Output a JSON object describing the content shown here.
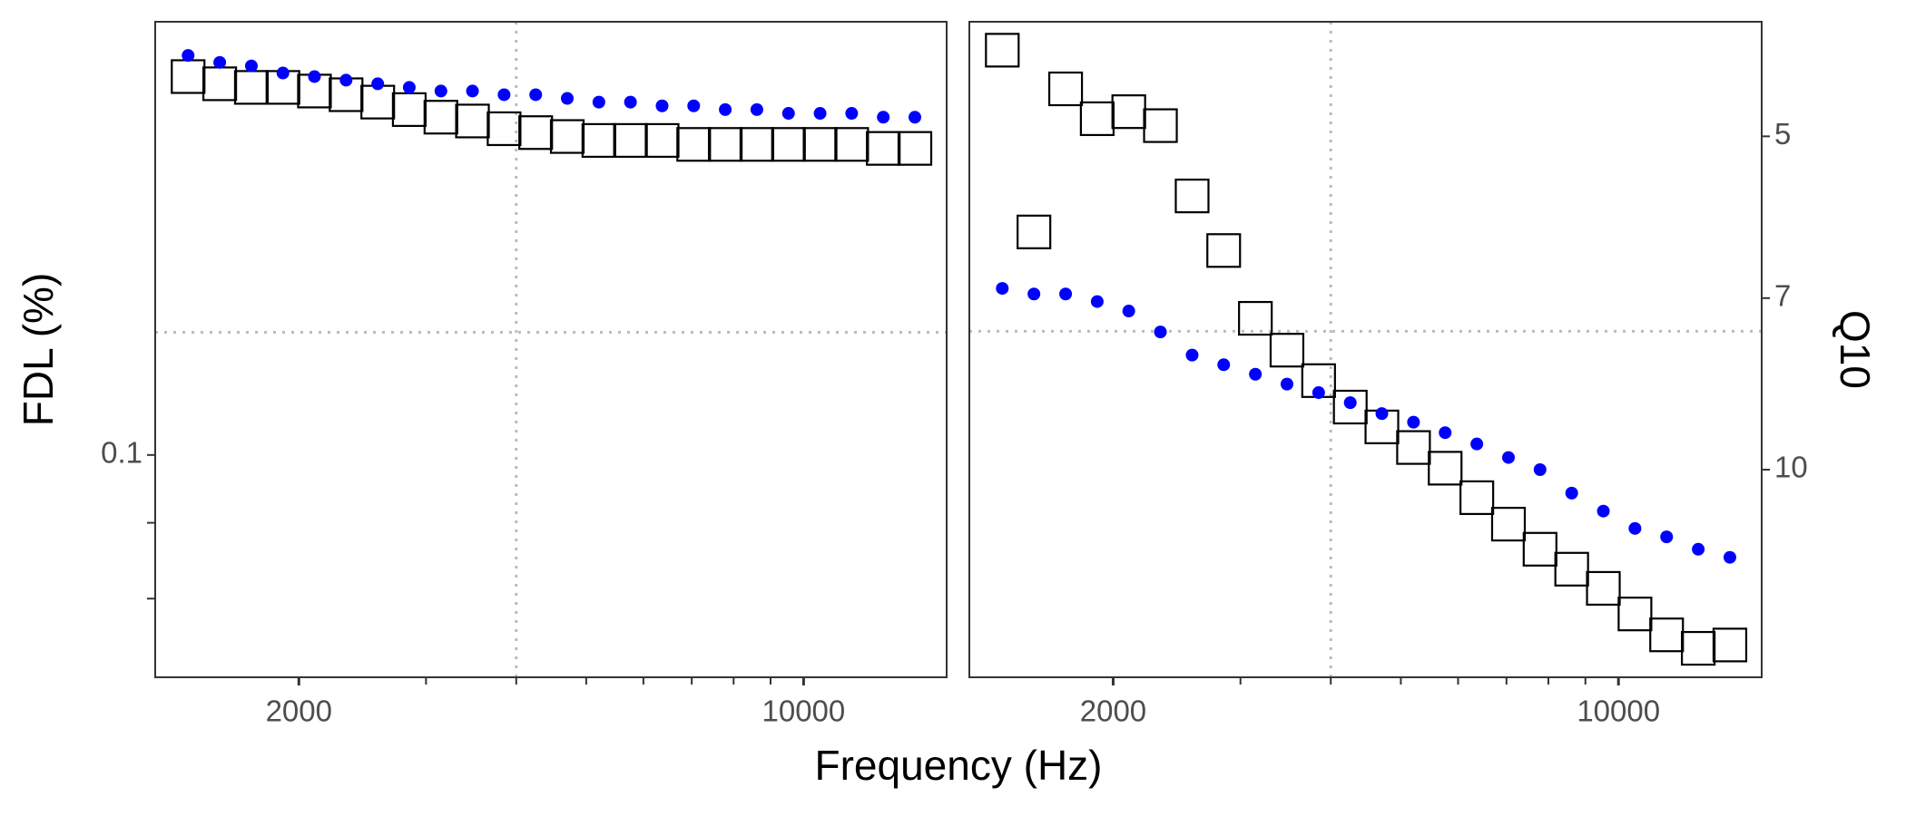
{
  "chart_data": [
    {
      "type": "scatter",
      "xlabel": "Frequency (Hz)",
      "ylabel": "FDL (%)",
      "log_x": true,
      "log_y": true,
      "reverse_y": false,
      "y_axis_side": "left",
      "xlim": [
        1265,
        15780
      ],
      "xticks": [
        2000,
        10000
      ],
      "xminor_ticks": [
        3000,
        4000,
        5000,
        6000,
        7000,
        8000,
        9000
      ],
      "ylim": [
        0.0708,
        0.196
      ],
      "yticks": [
        0.1
      ],
      "yminor_ticks": [
        0.09,
        0.08
      ],
      "ref_x": 4000,
      "ref_y": 0.121,
      "x": [
        1405,
        1554,
        1719,
        1901,
        2102,
        2325,
        2572,
        2844,
        3146,
        3479,
        3848,
        4256,
        4707,
        5206,
        5758,
        6369,
        7044,
        7790,
        8616,
        9530,
        10540,
        11657,
        12893,
        14260
      ],
      "series": [
        {
          "marker": "square",
          "color": "#000000",
          "values": [
            0.18,
            0.178,
            0.177,
            0.177,
            0.176,
            0.175,
            0.173,
            0.171,
            0.169,
            0.168,
            0.166,
            0.165,
            0.164,
            0.163,
            0.163,
            0.163,
            0.162,
            0.162,
            0.162,
            0.162,
            0.162,
            0.162,
            0.161,
            0.161
          ]
        },
        {
          "marker": "circle",
          "color": "#0000ff",
          "values": [
            0.186,
            0.184,
            0.183,
            0.181,
            0.18,
            0.179,
            0.178,
            0.177,
            0.176,
            0.176,
            0.175,
            0.175,
            0.174,
            0.173,
            0.173,
            0.172,
            0.172,
            0.171,
            0.171,
            0.17,
            0.17,
            0.17,
            0.169,
            0.169
          ]
        }
      ]
    },
    {
      "type": "scatter",
      "ylabel": "Q10",
      "log_x": true,
      "log_y": true,
      "reverse_y": true,
      "y_axis_side": "right",
      "xlim": [
        1265,
        15780
      ],
      "xticks": [
        2000,
        10000
      ],
      "xminor_ticks": [
        3000,
        4000,
        5000,
        6000,
        7000,
        8000,
        9000
      ],
      "ylim": [
        3.94,
        15.4
      ],
      "yticks": [
        5,
        7,
        10
      ],
      "ref_x": 4000,
      "ref_y": 7.5,
      "x": [
        1405,
        1554,
        1719,
        1901,
        2102,
        2325,
        2572,
        2844,
        3146,
        3479,
        3848,
        4256,
        4707,
        5206,
        5758,
        6369,
        7044,
        7790,
        8616,
        9530,
        10540,
        11657,
        12893,
        14260
      ],
      "series": [
        {
          "marker": "square",
          "color": "#000000",
          "values": [
            4.18,
            6.1,
            4.53,
            4.82,
            4.75,
            4.89,
            5.66,
            6.34,
            7.3,
            7.8,
            8.31,
            8.78,
            9.15,
            9.55,
            9.97,
            10.6,
            11.2,
            11.8,
            12.3,
            12.8,
            13.5,
            14.1,
            14.5,
            14.4
          ]
        },
        {
          "marker": "circle",
          "color": "#0000ff",
          "values": [
            6.86,
            6.94,
            6.94,
            7.05,
            7.19,
            7.51,
            7.88,
            8.04,
            8.2,
            8.37,
            8.52,
            8.7,
            8.9,
            9.06,
            9.26,
            9.48,
            9.75,
            10.0,
            10.5,
            10.9,
            11.3,
            11.5,
            11.8,
            12.0
          ]
        }
      ]
    }
  ]
}
